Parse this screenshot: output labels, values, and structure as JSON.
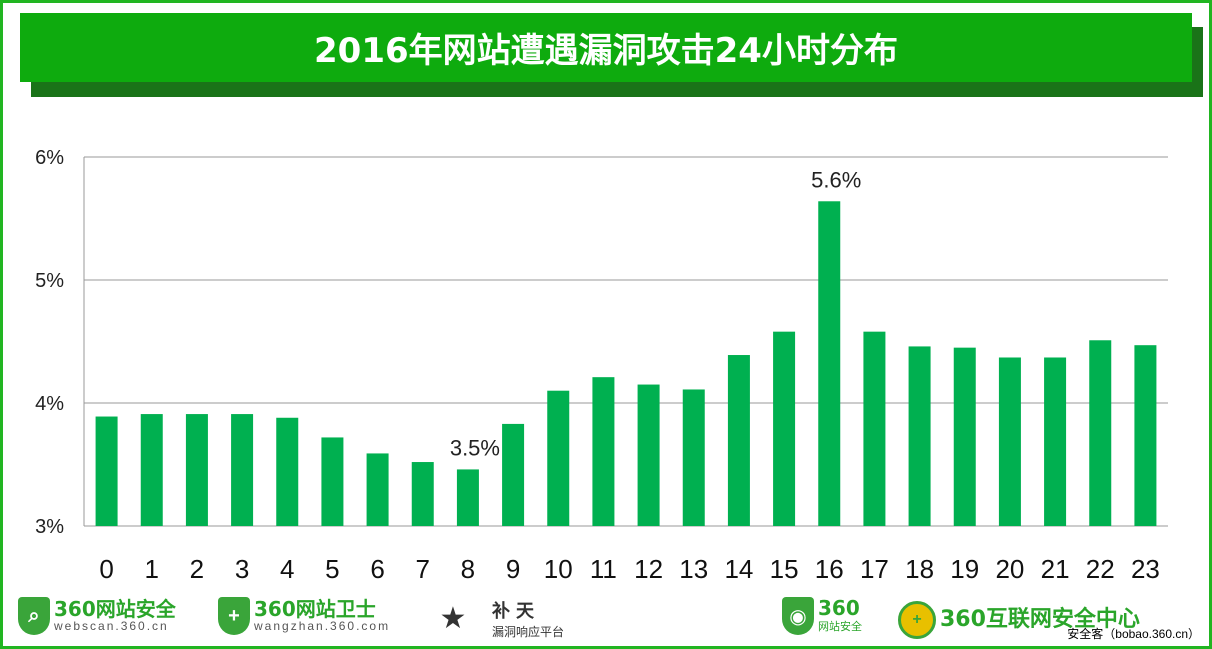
{
  "chart_data": {
    "type": "bar",
    "title": "2016年网站遭遇漏洞攻击24小时分布",
    "xlabel": "",
    "ylabel": "",
    "categories": [
      "0",
      "1",
      "2",
      "3",
      "4",
      "5",
      "6",
      "7",
      "8",
      "9",
      "10",
      "11",
      "12",
      "13",
      "14",
      "15",
      "16",
      "17",
      "18",
      "19",
      "20",
      "21",
      "22",
      "23"
    ],
    "values": [
      3.89,
      3.91,
      3.91,
      3.91,
      3.88,
      3.72,
      3.59,
      3.52,
      3.46,
      3.83,
      4.1,
      4.21,
      4.15,
      4.11,
      4.39,
      4.58,
      5.64,
      4.58,
      4.46,
      4.45,
      4.37,
      4.37,
      4.51,
      4.47
    ],
    "ylim": [
      3,
      6
    ],
    "yticks": [
      {
        "v": 3,
        "label": "3%"
      },
      {
        "v": 4,
        "label": "4%"
      },
      {
        "v": 5,
        "label": "5%"
      },
      {
        "v": 6,
        "label": "6%"
      }
    ],
    "annotations": [
      {
        "index": 8,
        "text": "3.5%"
      },
      {
        "index": 16,
        "text": "5.6%"
      }
    ],
    "grid": true,
    "bar_color": "#00b050"
  },
  "footer": {
    "logo1": {
      "name": "360网站安全",
      "url": "webscan.360.cn"
    },
    "logo2": {
      "name": "360网站卫士",
      "url": "wangzhan.360.com"
    },
    "logo3": {
      "name": "补天",
      "sub": "漏洞响应平台"
    },
    "logo4": {
      "name": "360",
      "sub": "网站安全"
    },
    "logo5": {
      "name": "360互联网安全中心"
    },
    "credit": "安全客（bobao.360.cn）"
  }
}
